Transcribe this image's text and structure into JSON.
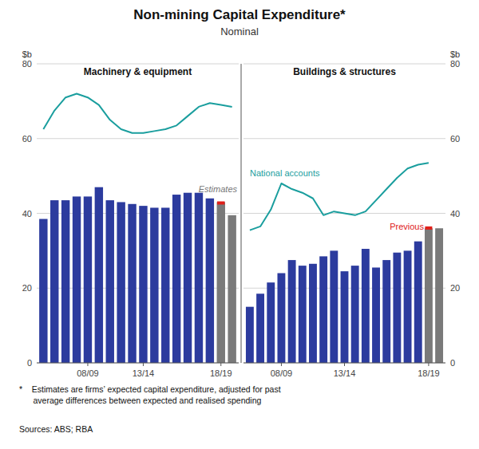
{
  "title": "Non-mining Capital Expenditure*",
  "subtitle": "Nominal",
  "footnote": "*    Estimates are firms’ expected capital expenditure, adjusted for past\n      average differences between expected and realised spending",
  "sources": "Sources: ABS; RBA",
  "chart_data": [
    {
      "type": "bar",
      "title": "Machinery & equipment",
      "ylabel": "$b",
      "annotations": [
        "Estimates"
      ],
      "categories": [
        null,
        null,
        null,
        null,
        "08/09",
        null,
        null,
        null,
        null,
        "13/14",
        null,
        null,
        null,
        null,
        null,
        null,
        "18/19",
        null
      ],
      "ylim": [
        0,
        80
      ],
      "yticks": [
        0,
        20,
        40,
        60,
        80
      ],
      "grid": true,
      "series": [
        {
          "type": "bar",
          "values": [
            38.5,
            43.5,
            43.5,
            44.5,
            44.5,
            47.0,
            43.5,
            43.0,
            42.5,
            42.0,
            41.5,
            41.5,
            45.0,
            45.5,
            45.5,
            44.0,
            43.0,
            39.5
          ],
          "colors": [
            "#2c3b9e",
            "#2c3b9e",
            "#2c3b9e",
            "#2c3b9e",
            "#2c3b9e",
            "#2c3b9e",
            "#2c3b9e",
            "#2c3b9e",
            "#2c3b9e",
            "#2c3b9e",
            "#2c3b9e",
            "#2c3b9e",
            "#2c3b9e",
            "#2c3b9e",
            "#2c3b9e",
            "#2c3b9e",
            "#7a7a7a",
            "#7a7a7a"
          ]
        },
        {
          "type": "line",
          "color": "#1a9e9e",
          "values": [
            62.5,
            67.5,
            71.0,
            72.0,
            71.0,
            69.0,
            65.0,
            62.5,
            61.5,
            61.5,
            62.0,
            62.5,
            63.5,
            66.0,
            68.5,
            69.5,
            69.0,
            68.5
          ]
        },
        {
          "type": "scatter",
          "marker": "dash",
          "color": "#e0201a",
          "values": [
            null,
            null,
            null,
            null,
            null,
            null,
            null,
            null,
            null,
            null,
            null,
            null,
            null,
            null,
            null,
            null,
            43.2,
            null
          ]
        }
      ]
    },
    {
      "type": "bar",
      "title": "Buildings & structures",
      "ylabel": "$b",
      "categories": [
        null,
        null,
        null,
        "08/09",
        null,
        null,
        null,
        null,
        null,
        "13/14",
        null,
        null,
        null,
        null,
        null,
        null,
        null,
        "18/19",
        null
      ],
      "ylim": [
        0,
        80
      ],
      "yticks": [
        0,
        20,
        40,
        60,
        80
      ],
      "grid": true,
      "series": [
        {
          "type": "bar",
          "values": [
            15.0,
            18.5,
            21.5,
            24.0,
            27.5,
            26.0,
            26.5,
            28.5,
            30.0,
            24.5,
            26.0,
            30.5,
            25.5,
            27.5,
            29.5,
            30.0,
            32.5,
            36.0,
            36.0
          ],
          "colors": [
            "#2c3b9e",
            "#2c3b9e",
            "#2c3b9e",
            "#2c3b9e",
            "#2c3b9e",
            "#2c3b9e",
            "#2c3b9e",
            "#2c3b9e",
            "#2c3b9e",
            "#2c3b9e",
            "#2c3b9e",
            "#2c3b9e",
            "#2c3b9e",
            "#2c3b9e",
            "#2c3b9e",
            "#2c3b9e",
            "#2c3b9e",
            "#7a7a7a",
            "#7a7a7a"
          ]
        },
        {
          "type": "line",
          "name": "National accounts",
          "color": "#1a9e9e",
          "values": [
            35.5,
            36.5,
            41.0,
            48.0,
            46.5,
            45.5,
            44.0,
            39.5,
            40.5,
            40.0,
            39.5,
            40.5,
            43.5,
            46.5,
            49.5,
            52.0,
            53.0,
            53.5,
            null
          ]
        },
        {
          "type": "scatter",
          "name": "Previous",
          "marker": "dash",
          "color": "#e0201a",
          "values": [
            null,
            null,
            null,
            null,
            null,
            null,
            null,
            null,
            null,
            null,
            null,
            null,
            null,
            null,
            null,
            null,
            null,
            36.5,
            null
          ]
        }
      ]
    }
  ]
}
